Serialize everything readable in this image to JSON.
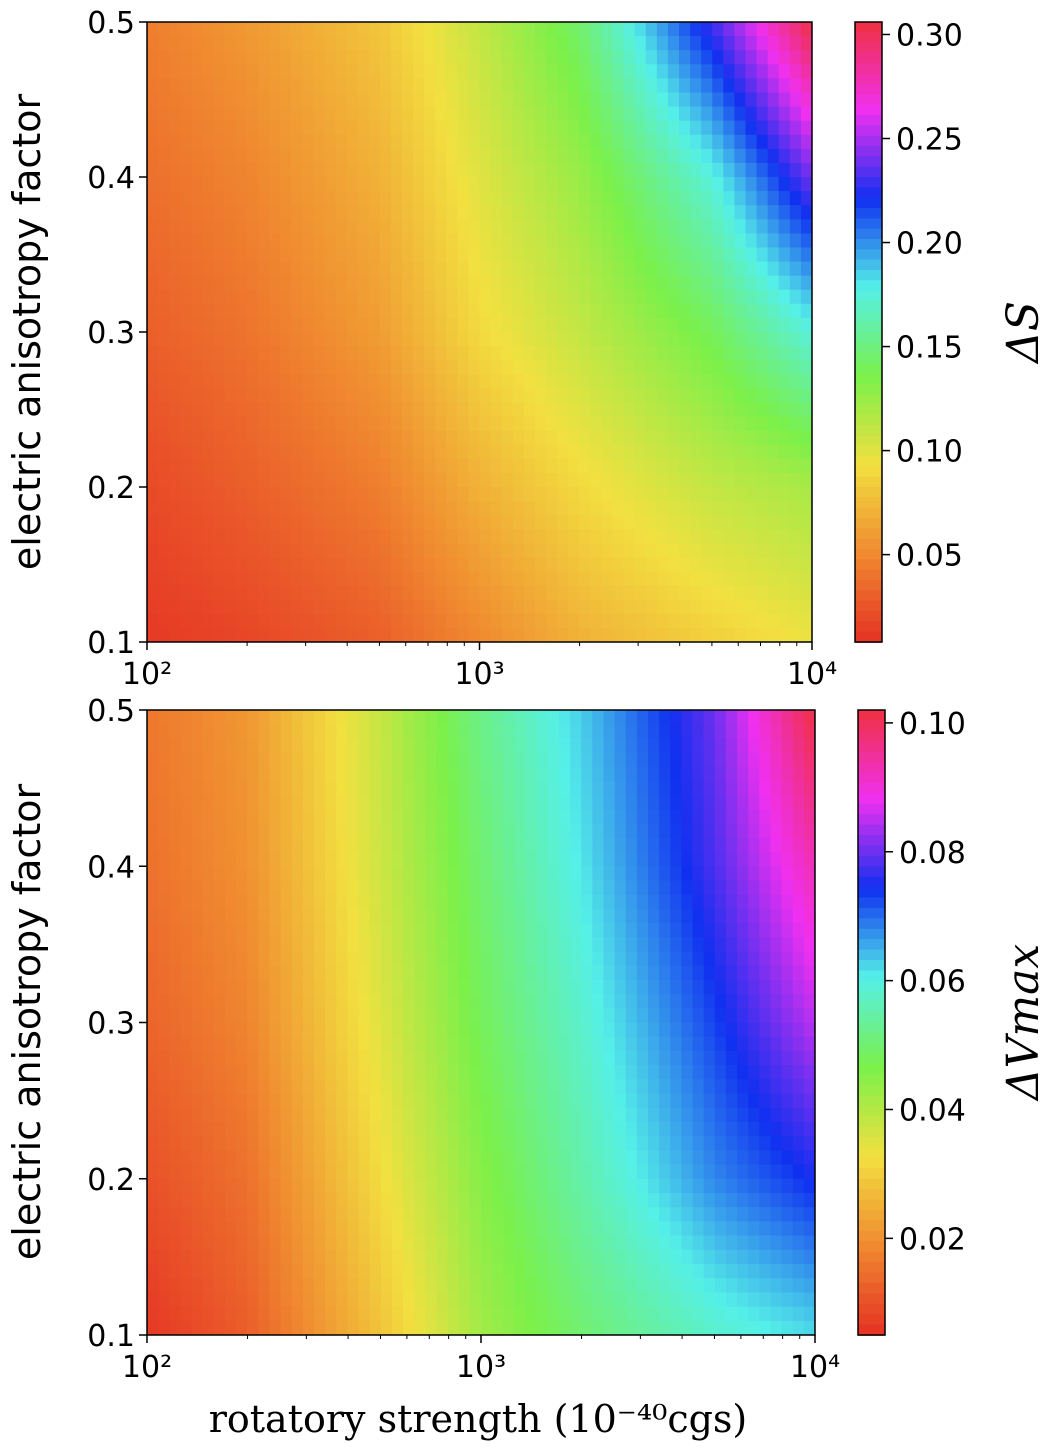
{
  "chart_data": [
    {
      "type": "heatmap",
      "name": "top",
      "xscale": "log",
      "xlim": [
        100,
        10000
      ],
      "ylim": [
        0.1,
        0.5
      ],
      "x_ticks": [
        "10²",
        "10³",
        "10⁴"
      ],
      "y_ticks": [
        "0.1",
        "0.2",
        "0.3",
        "0.4",
        "0.5"
      ],
      "ylabel": "electric anisotropy factor",
      "xlabel": "",
      "colorbar": {
        "label": "ΔS",
        "range": [
          0.008,
          0.306
        ],
        "ticks": [
          "0.05",
          "0.10",
          "0.15",
          "0.20",
          "0.25",
          "0.30"
        ],
        "tick_values": [
          0.05,
          0.1,
          0.15,
          0.2,
          0.25,
          0.3
        ],
        "cmap": "rainbow_r"
      },
      "x": [
        100,
        200,
        500,
        1000,
        2000,
        5000,
        10000
      ],
      "y": [
        0.1,
        0.2,
        0.3,
        0.4,
        0.5
      ],
      "z": [
        [
          0.012,
          0.018,
          0.03,
          0.05,
          0.07,
          0.085,
          0.095
        ],
        [
          0.02,
          0.03,
          0.045,
          0.07,
          0.09,
          0.11,
          0.12
        ],
        [
          0.03,
          0.04,
          0.06,
          0.09,
          0.11,
          0.14,
          0.175
        ],
        [
          0.038,
          0.048,
          0.07,
          0.1,
          0.125,
          0.175,
          0.24
        ],
        [
          0.045,
          0.058,
          0.08,
          0.11,
          0.145,
          0.23,
          0.306
        ]
      ]
    },
    {
      "type": "heatmap",
      "name": "bottom",
      "xscale": "log",
      "xlim": [
        100,
        10000
      ],
      "ylim": [
        0.1,
        0.5
      ],
      "x_ticks": [
        "10²",
        "10³",
        "10⁴"
      ],
      "y_ticks": [
        "0.1",
        "0.2",
        "0.3",
        "0.4",
        "0.5"
      ],
      "ylabel": "electric anisotropy factor",
      "xlabel": "rotatory strength (10⁻⁴⁰cgs)",
      "colorbar": {
        "label": "ΔVmax",
        "range": [
          0.005,
          0.102
        ],
        "ticks": [
          "0.02",
          "0.04",
          "0.06",
          "0.08",
          "0.10"
        ],
        "tick_values": [
          0.02,
          0.04,
          0.06,
          0.08,
          0.1
        ],
        "cmap": "rainbow_r"
      },
      "x": [
        100,
        200,
        500,
        1000,
        2000,
        5000,
        10000
      ],
      "y": [
        0.1,
        0.2,
        0.3,
        0.4,
        0.5
      ],
      "z": [
        [
          0.006,
          0.012,
          0.028,
          0.042,
          0.05,
          0.058,
          0.062
        ],
        [
          0.01,
          0.015,
          0.032,
          0.045,
          0.055,
          0.068,
          0.075
        ],
        [
          0.013,
          0.018,
          0.035,
          0.048,
          0.058,
          0.073,
          0.085
        ],
        [
          0.015,
          0.02,
          0.037,
          0.05,
          0.061,
          0.078,
          0.093
        ],
        [
          0.016,
          0.021,
          0.038,
          0.052,
          0.063,
          0.08,
          0.102
        ]
      ]
    }
  ],
  "colors": {
    "cmap_stops": [
      "#e53124",
      "#f08a30",
      "#f2e040",
      "#7bf04a",
      "#55f0e8",
      "#1030f0",
      "#f030f0",
      "#f03040"
    ]
  }
}
